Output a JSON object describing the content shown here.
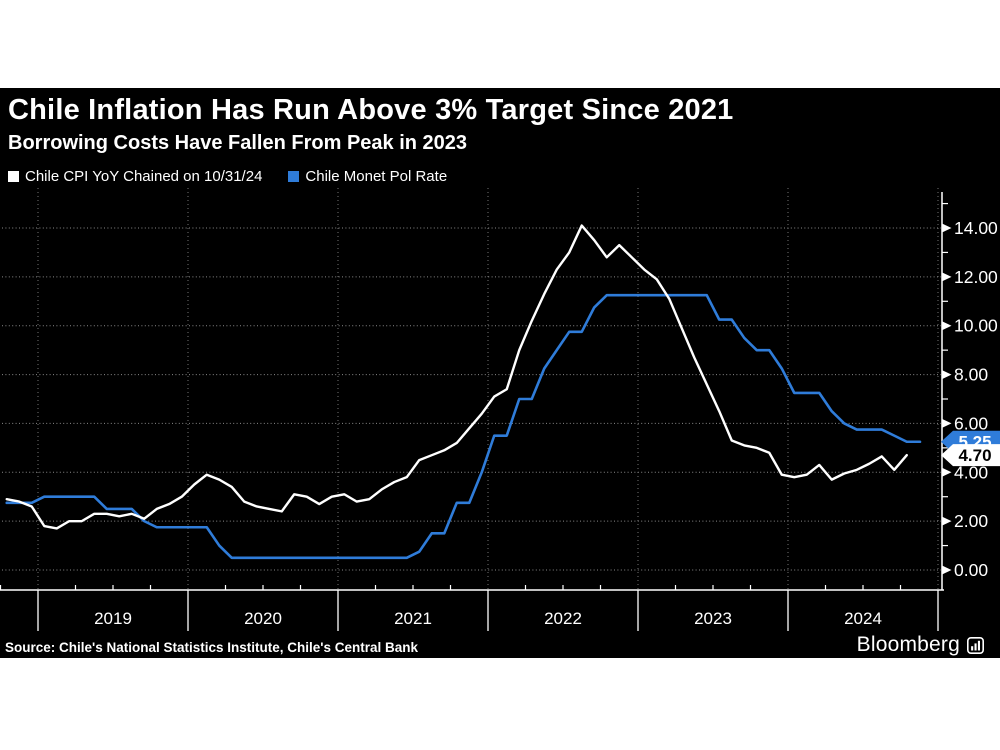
{
  "header": {
    "title": "Chile Inflation Has Run Above 3% Target Since 2021",
    "subtitle": "Borrowing Costs Have Fallen From Peak in 2023"
  },
  "legend": [
    {
      "label": "Chile CPI YoY Chained on 10/31/24",
      "color": "#ffffff"
    },
    {
      "label": "Chile Monet Pol Rate",
      "color": "#2f7cd9"
    }
  ],
  "source_line": "Source: Chile's National Statistics Institute, Chile's Central Bank",
  "brand": "Bloomberg",
  "colors": {
    "background": "#000000",
    "page": "#ffffff",
    "cpi_line": "#ffffff",
    "rate_line": "#2f7cd9",
    "grid": "#9a9a9a",
    "axis": "#ffffff"
  },
  "chart_data": {
    "type": "line",
    "title": "Chile Inflation Has Run Above 3% Target Since 2021",
    "subtitle": "Borrowing Costs Have Fallen From Peak in 2023",
    "x_start": {
      "year": 2018,
      "month": 10
    },
    "frequency": "monthly",
    "x_tick_years": [
      2019,
      2020,
      2021,
      2022,
      2023,
      2024
    ],
    "x_range_years": [
      2018.75,
      2025.0
    ],
    "ylim": [
      0,
      15
    ],
    "y_ticks": [
      0,
      2,
      4,
      6,
      8,
      10,
      12,
      14
    ],
    "y_tick_labels": [
      "0.00",
      "2.00",
      "4.00",
      "6.00",
      "8.00",
      "10.00",
      "12.00",
      "14.00"
    ],
    "grid": true,
    "legend_position": "top-left",
    "series": [
      {
        "name": "Chile CPI YoY Chained on 10/31/24",
        "color": "#ffffff",
        "last_value_label": "4.70",
        "values": [
          2.9,
          2.8,
          2.6,
          1.8,
          1.7,
          2.0,
          2.0,
          2.3,
          2.3,
          2.2,
          2.3,
          2.1,
          2.5,
          2.7,
          3.0,
          3.5,
          3.9,
          3.7,
          3.4,
          2.8,
          2.6,
          2.5,
          2.4,
          3.1,
          3.0,
          2.7,
          3.0,
          3.1,
          2.8,
          2.9,
          3.3,
          3.6,
          3.8,
          4.5,
          4.7,
          4.9,
          5.2,
          5.8,
          6.4,
          7.1,
          7.4,
          9.0,
          10.2,
          11.3,
          12.3,
          13.0,
          14.1,
          13.5,
          12.8,
          13.3,
          12.8,
          12.3,
          11.9,
          11.1,
          9.9,
          8.7,
          7.6,
          6.5,
          5.3,
          5.1,
          5.0,
          4.8,
          3.9,
          3.8,
          3.9,
          4.3,
          3.7,
          3.95,
          4.1,
          4.35,
          4.65,
          4.1,
          4.7
        ]
      },
      {
        "name": "Chile Monet Pol Rate",
        "color": "#2f7cd9",
        "last_value_label": "5.25",
        "values": [
          2.75,
          2.75,
          2.75,
          3.0,
          3.0,
          3.0,
          3.0,
          3.0,
          2.5,
          2.5,
          2.5,
          2.0,
          1.75,
          1.75,
          1.75,
          1.75,
          1.75,
          1.0,
          0.5,
          0.5,
          0.5,
          0.5,
          0.5,
          0.5,
          0.5,
          0.5,
          0.5,
          0.5,
          0.5,
          0.5,
          0.5,
          0.5,
          0.5,
          0.75,
          1.5,
          1.5,
          2.75,
          2.75,
          4.0,
          5.5,
          5.5,
          7.0,
          7.0,
          8.25,
          9.0,
          9.75,
          9.75,
          10.75,
          11.25,
          11.25,
          11.25,
          11.25,
          11.25,
          11.25,
          11.25,
          11.25,
          11.25,
          10.25,
          10.25,
          9.5,
          9.0,
          9.0,
          8.25,
          7.25,
          7.25,
          7.25,
          6.5,
          6.0,
          5.75,
          5.75,
          5.75,
          5.5,
          5.25
        ]
      }
    ]
  }
}
